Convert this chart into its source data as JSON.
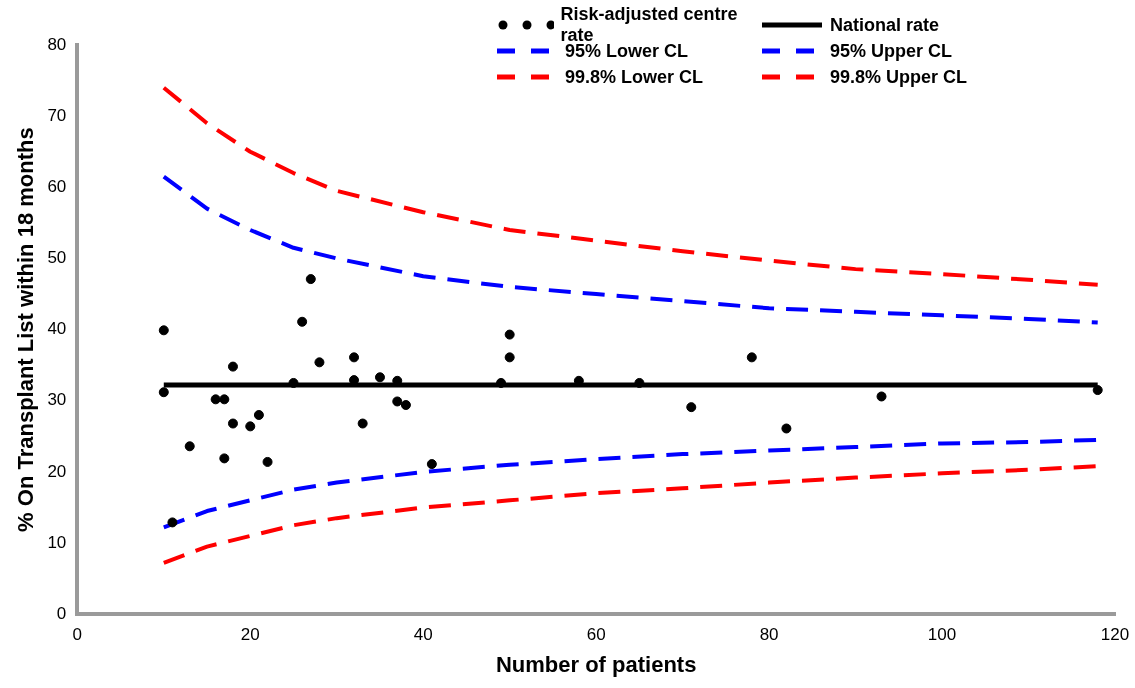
{
  "chart_data": {
    "type": "scatter",
    "xlabel": "Number of patients",
    "ylabel": "% On Transplant List within 18 months",
    "xlim": [
      0,
      120
    ],
    "xticks": [
      0,
      20,
      40,
      60,
      80,
      100,
      120
    ],
    "ylim": [
      0,
      80
    ],
    "yticks": [
      0,
      10,
      20,
      30,
      40,
      50,
      60,
      70,
      80
    ],
    "grid": false,
    "legend": "top",
    "tick_labels": true,
    "series": [
      {
        "name": "Risk-adjusted centre rate",
        "type": "scatter",
        "marker": "circle",
        "color": "#000000",
        "x": [
          10,
          10,
          11,
          13,
          16,
          17,
          18,
          18,
          17,
          20,
          21,
          22,
          25,
          26,
          27,
          28,
          32,
          32,
          33,
          35,
          37,
          37,
          38,
          41,
          50,
          50,
          49,
          58,
          65,
          71,
          78,
          82,
          93,
          118
        ],
        "values": [
          39.9,
          31.2,
          12.9,
          23.6,
          30.2,
          30.2,
          34.8,
          26.8,
          21.9,
          26.4,
          28.0,
          21.4,
          32.5,
          41.1,
          47.1,
          35.4,
          36.1,
          32.9,
          26.8,
          33.3,
          32.8,
          29.9,
          29.4,
          21.1,
          39.3,
          36.1,
          32.5,
          32.8,
          32.5,
          29.1,
          36.1,
          26.1,
          30.6,
          31.5
        ]
      },
      {
        "name": "National rate",
        "type": "line",
        "line_style": "solid",
        "color": "#000000",
        "x": [
          10,
          118
        ],
        "values": [
          32.2,
          32.2
        ]
      },
      {
        "name": "95% Lower CL",
        "type": "line",
        "line_style": "dashed",
        "color": "#0000ff",
        "x": [
          10,
          15,
          20,
          25,
          30,
          40,
          50,
          60,
          70,
          80,
          90,
          100,
          110,
          118
        ],
        "values": [
          12.2,
          14.5,
          16,
          17.5,
          18.5,
          20,
          21,
          21.8,
          22.5,
          23,
          23.5,
          24,
          24.2,
          24.5
        ]
      },
      {
        "name": "95% Upper CL",
        "type": "line",
        "line_style": "dashed",
        "color": "#0000ff",
        "x": [
          10,
          15,
          20,
          25,
          30,
          40,
          50,
          60,
          70,
          80,
          90,
          100,
          110,
          118
        ],
        "values": [
          61.5,
          57,
          54,
          51.5,
          50,
          47.5,
          46,
          45,
          44,
          43,
          42.5,
          42,
          41.5,
          41
        ]
      },
      {
        "name": "99.8% Lower CL",
        "type": "line",
        "line_style": "dashed",
        "color": "#ff0000",
        "x": [
          10,
          15,
          20,
          25,
          30,
          40,
          50,
          60,
          70,
          80,
          90,
          100,
          110,
          118
        ],
        "values": [
          7.2,
          9.5,
          11,
          12.5,
          13.5,
          15,
          16,
          17,
          17.7,
          18.5,
          19.2,
          19.8,
          20.3,
          20.8
        ]
      },
      {
        "name": "99.8% Upper CL",
        "type": "line",
        "line_style": "dashed",
        "color": "#ff0000",
        "x": [
          10,
          15,
          20,
          25,
          30,
          40,
          50,
          60,
          70,
          80,
          90,
          100,
          110,
          118
        ],
        "values": [
          74,
          69,
          65,
          62,
          59.5,
          56.5,
          54,
          52.5,
          51,
          49.7,
          48.5,
          47.8,
          47,
          46.3
        ]
      }
    ]
  }
}
